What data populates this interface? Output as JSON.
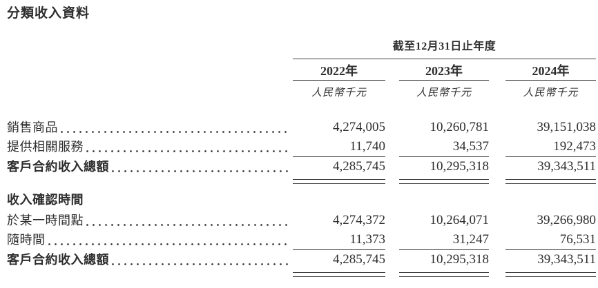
{
  "page_title": "分類收入資料",
  "colors": {
    "text": "#2e2e2e",
    "rule": "#3f3f3f",
    "background": "#ffffff"
  },
  "table": {
    "period_header": "截至12月31日止年度",
    "columns": [
      "2022年",
      "2023年",
      "2024年"
    ],
    "unit_label": "人民幣千元",
    "sections": [
      {
        "rows": [
          {
            "label": "銷售商品",
            "values": [
              "4,274,005",
              "10,260,781",
              "39,151,038"
            ]
          },
          {
            "label": "提供相關服務",
            "values": [
              "11,740",
              "34,537",
              "192,473"
            ]
          },
          {
            "label": "客戶合約收入總額",
            "values": [
              "4,285,745",
              "10,295,318",
              "39,343,511"
            ],
            "total": true
          }
        ]
      },
      {
        "heading": "收入確認時間",
        "rows": [
          {
            "label": "於某一時間點",
            "values": [
              "4,274,372",
              "10,264,071",
              "39,266,980"
            ]
          },
          {
            "label": "隨時間",
            "values": [
              "11,373",
              "31,247",
              "76,531"
            ]
          },
          {
            "label": "客戶合約收入總額",
            "values": [
              "4,285,745",
              "10,295,318",
              "39,343,511"
            ],
            "total": true
          }
        ]
      }
    ]
  }
}
